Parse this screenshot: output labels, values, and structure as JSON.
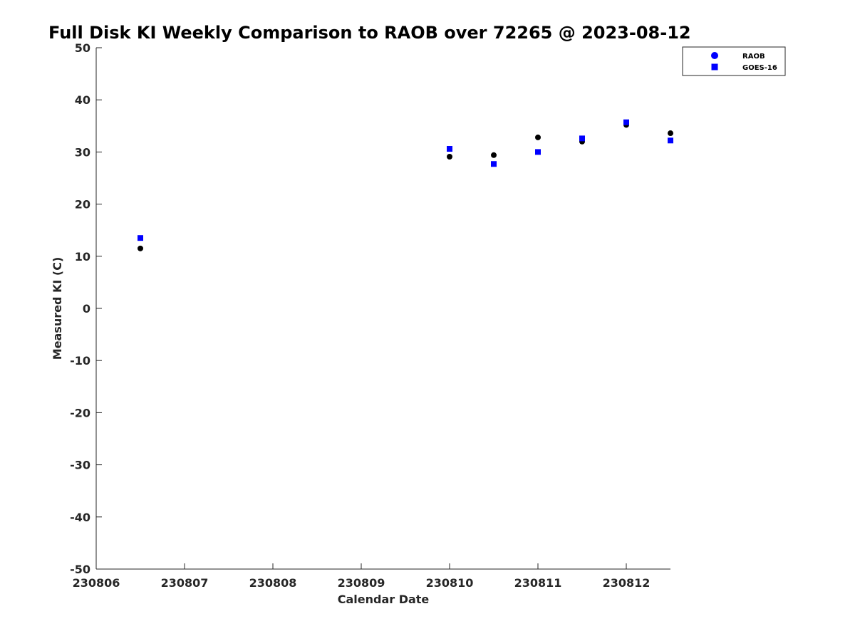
{
  "chart_data": {
    "type": "scatter",
    "title": "Full Disk KI Weekly Comparison to RAOB over 72265 @ 2023-08-12",
    "xlabel": "Calendar Date",
    "ylabel": "Measured KI (C)",
    "xlim": [
      0,
      6.5
    ],
    "ylim": [
      -50,
      50
    ],
    "x_ticks": [
      {
        "value": 0,
        "label": "230806"
      },
      {
        "value": 1,
        "label": "230807"
      },
      {
        "value": 2,
        "label": "230808"
      },
      {
        "value": 3,
        "label": "230809"
      },
      {
        "value": 4,
        "label": "230810"
      },
      {
        "value": 5,
        "label": "230811"
      },
      {
        "value": 6,
        "label": "230812"
      }
    ],
    "y_ticks": [
      {
        "value": 50,
        "label": "50"
      },
      {
        "value": 40,
        "label": "40"
      },
      {
        "value": 30,
        "label": "30"
      },
      {
        "value": 20,
        "label": "20"
      },
      {
        "value": 10,
        "label": "10"
      },
      {
        "value": 0,
        "label": "0"
      },
      {
        "value": -10,
        "label": "-10"
      },
      {
        "value": -20,
        "label": "-20"
      },
      {
        "value": -30,
        "label": "-30"
      },
      {
        "value": -40,
        "label": "-40"
      },
      {
        "value": -50,
        "label": "-50"
      }
    ],
    "grid": false,
    "legend_position": "top-right",
    "series": [
      {
        "name": "RAOB",
        "marker": "circle",
        "color": "#000000",
        "legend_color": "#0000ff",
        "x": [
          0.5,
          4.0,
          4.5,
          5.0,
          5.5,
          6.0,
          6.5
        ],
        "y": [
          11.5,
          29.1,
          29.4,
          32.8,
          32.0,
          35.2,
          33.6
        ]
      },
      {
        "name": "GOES-16",
        "marker": "square",
        "color": "#0000ff",
        "legend_color": "#0000ff",
        "x": [
          0.5,
          4.0,
          4.5,
          5.0,
          5.5,
          6.0,
          6.5
        ],
        "y": [
          13.5,
          30.6,
          27.7,
          30.0,
          32.6,
          35.7,
          32.2
        ]
      }
    ]
  }
}
